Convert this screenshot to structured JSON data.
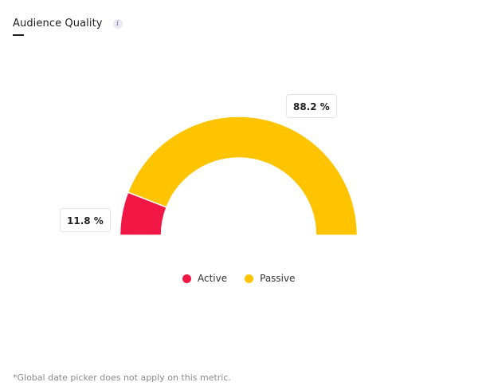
{
  "header": {
    "title": "Audience Quality",
    "info_icon": "i"
  },
  "chart_data": {
    "type": "pie",
    "variant": "half-donut",
    "series": [
      {
        "name": "Active",
        "value": 11.8,
        "label": "11.8 %",
        "color": "#f21846"
      },
      {
        "name": "Passive",
        "value": 88.2,
        "label": "88.2 %",
        "color": "#ffc400"
      }
    ],
    "legend_position": "bottom"
  },
  "footnote": "*Global date picker does not apply on this metric."
}
